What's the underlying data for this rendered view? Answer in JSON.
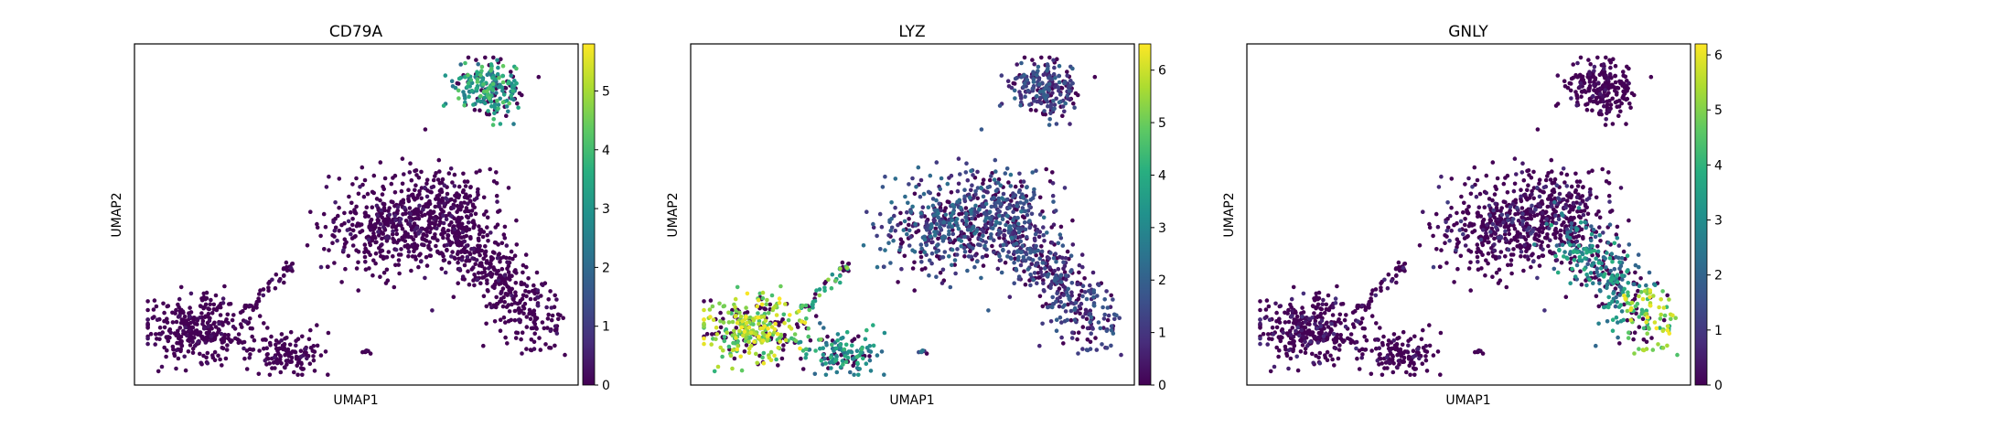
{
  "chart_data": [
    {
      "type": "scatter",
      "title": "CD79A",
      "xlabel": "UMAP1",
      "ylabel": "UMAP2",
      "colorbar": {
        "min": 0,
        "max": 5.8,
        "ticks": [
          0,
          1,
          2,
          3,
          4,
          5
        ],
        "colormap": "viridis"
      },
      "cluster_values": {
        "top": 3.2,
        "upper_right": 0.15,
        "right_tail": 0.1,
        "left_blob": 0.05,
        "left_arm": 0.05,
        "bottom": 0.05,
        "small": 0.0
      }
    },
    {
      "type": "scatter",
      "title": "LYZ",
      "xlabel": "UMAP1",
      "ylabel": "UMAP2",
      "colorbar": {
        "min": 0,
        "max": 6.5,
        "ticks": [
          0,
          1,
          2,
          3,
          4,
          5,
          6
        ],
        "colormap": "viridis"
      },
      "cluster_values": {
        "top": 1.3,
        "upper_right": 1.5,
        "right_tail": 1.2,
        "left_blob": 5.4,
        "left_arm": 4.3,
        "bottom": 3.2,
        "small": 2.0
      }
    },
    {
      "type": "scatter",
      "title": "GNLY",
      "xlabel": "UMAP1",
      "ylabel": "UMAP2",
      "colorbar": {
        "min": 0,
        "max": 6.2,
        "ticks": [
          0,
          1,
          2,
          3,
          4,
          5,
          6
        ],
        "colormap": "viridis"
      },
      "cluster_values": {
        "top": 0.2,
        "upper_right": 0.6,
        "right_tail": 2.8,
        "nk_cluster": 5.0,
        "left_blob": 0.4,
        "left_arm": 0.3,
        "bottom": 0.2,
        "small": 0.0
      }
    }
  ]
}
